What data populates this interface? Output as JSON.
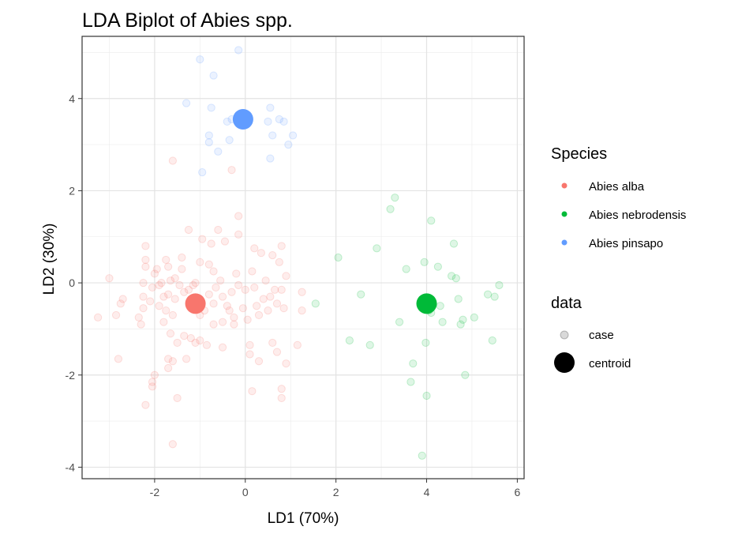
{
  "chart_data": {
    "type": "scatter",
    "title": "LDA Biplot of Abies spp.",
    "xlabel": "LD1 (70%)",
    "ylabel": "LD2 (30%)",
    "xlim": [
      -3.6,
      6.15
    ],
    "ylim": [
      -4.25,
      5.35
    ],
    "xticks": [
      -2,
      0,
      2,
      4,
      6
    ],
    "yticks": [
      -4,
      -2,
      0,
      2,
      4
    ],
    "grid": true,
    "legend_position": "right",
    "legends": [
      {
        "title": "Species",
        "entries": [
          {
            "label": "Abies alba",
            "color": "#F8766D"
          },
          {
            "label": "Abies nebrodensis",
            "color": "#00BA38"
          },
          {
            "label": "Abies pinsapo",
            "color": "#619CFF"
          }
        ]
      },
      {
        "title": "data",
        "entries": [
          {
            "label": "case"
          },
          {
            "label": "centroid"
          }
        ]
      }
    ],
    "series": [
      {
        "name": "Abies alba",
        "color": "#F8766D",
        "cases": [
          [
            -3.25,
            -0.75
          ],
          [
            -3.0,
            0.1
          ],
          [
            -2.85,
            -0.7
          ],
          [
            -2.8,
            -1.65
          ],
          [
            -2.75,
            -0.45
          ],
          [
            -2.7,
            -0.35
          ],
          [
            -2.35,
            -0.75
          ],
          [
            -2.3,
            -0.9
          ],
          [
            -2.25,
            -0.55
          ],
          [
            -2.25,
            -0.3
          ],
          [
            -2.25,
            0.0
          ],
          [
            -2.2,
            0.35
          ],
          [
            -2.2,
            0.5
          ],
          [
            -2.2,
            0.8
          ],
          [
            -2.2,
            -2.65
          ],
          [
            -2.1,
            -0.4
          ],
          [
            -2.05,
            -0.1
          ],
          [
            -2.0,
            0.2
          ],
          [
            -2.05,
            -2.15
          ],
          [
            -2.0,
            -2.0
          ],
          [
            -2.05,
            -2.25
          ],
          [
            -1.95,
            0.3
          ],
          [
            -1.9,
            -0.5
          ],
          [
            -1.9,
            -0.05
          ],
          [
            -1.85,
            0.0
          ],
          [
            -1.8,
            -0.3
          ],
          [
            -1.8,
            -0.85
          ],
          [
            -1.75,
            0.5
          ],
          [
            -1.75,
            -0.6
          ],
          [
            -1.7,
            0.35
          ],
          [
            -1.7,
            -0.25
          ],
          [
            -1.7,
            -1.65
          ],
          [
            -1.7,
            -1.85
          ],
          [
            -1.65,
            -1.1
          ],
          [
            -1.65,
            0.05
          ],
          [
            -1.6,
            -0.7
          ],
          [
            -1.6,
            2.65
          ],
          [
            -1.6,
            -1.7
          ],
          [
            -1.6,
            -3.5
          ],
          [
            -1.55,
            0.1
          ],
          [
            -1.55,
            -0.35
          ],
          [
            -1.5,
            -1.3
          ],
          [
            -1.5,
            -2.5
          ],
          [
            -1.45,
            -0.05
          ],
          [
            -1.4,
            0.3
          ],
          [
            -1.4,
            0.55
          ],
          [
            -1.35,
            -0.2
          ],
          [
            -1.35,
            -1.15
          ],
          [
            -1.3,
            -1.65
          ],
          [
            -1.25,
            -0.15
          ],
          [
            -1.25,
            1.15
          ],
          [
            -1.2,
            -1.2
          ],
          [
            -1.15,
            -0.05
          ],
          [
            -1.1,
            0.0
          ],
          [
            -1.1,
            -1.3
          ],
          [
            -1.0,
            -0.7
          ],
          [
            -1.0,
            0.45
          ],
          [
            -1.0,
            -1.25
          ],
          [
            -0.95,
            0.95
          ],
          [
            -0.9,
            -0.6
          ],
          [
            -0.85,
            -1.35
          ],
          [
            -0.8,
            -0.25
          ],
          [
            -0.8,
            0.4
          ],
          [
            -0.75,
            0.85
          ],
          [
            -0.7,
            0.25
          ],
          [
            -0.7,
            -0.45
          ],
          [
            -0.7,
            -0.9
          ],
          [
            -0.65,
            -0.1
          ],
          [
            -0.6,
            1.15
          ],
          [
            -0.55,
            0.05
          ],
          [
            -0.5,
            -0.3
          ],
          [
            -0.5,
            -0.85
          ],
          [
            -0.45,
            0.9
          ],
          [
            -0.4,
            -0.5
          ],
          [
            -0.35,
            -0.6
          ],
          [
            -0.3,
            -0.2
          ],
          [
            -0.3,
            2.45
          ],
          [
            -0.25,
            -0.9
          ],
          [
            -0.25,
            -0.75
          ],
          [
            -0.2,
            0.2
          ],
          [
            -0.15,
            1.05
          ],
          [
            -0.15,
            1.45
          ],
          [
            -0.15,
            -0.05
          ],
          [
            -0.05,
            -0.55
          ],
          [
            0.0,
            -0.15
          ],
          [
            0.05,
            -0.8
          ],
          [
            0.1,
            -1.35
          ],
          [
            0.1,
            -1.55
          ],
          [
            0.15,
            0.25
          ],
          [
            0.2,
            -0.1
          ],
          [
            0.2,
            0.75
          ],
          [
            0.25,
            -0.5
          ],
          [
            0.3,
            -0.7
          ],
          [
            0.35,
            0.65
          ],
          [
            0.4,
            -0.35
          ],
          [
            0.45,
            0.05
          ],
          [
            0.5,
            -0.6
          ],
          [
            0.55,
            -0.3
          ],
          [
            0.6,
            0.6
          ],
          [
            0.65,
            -0.15
          ],
          [
            0.7,
            -0.45
          ],
          [
            0.75,
            0.45
          ],
          [
            0.8,
            0.8
          ],
          [
            0.8,
            -0.15
          ],
          [
            0.85,
            -0.55
          ],
          [
            0.9,
            0.15
          ],
          [
            0.6,
            -1.3
          ],
          [
            0.7,
            -1.5
          ],
          [
            0.9,
            -1.75
          ],
          [
            0.15,
            -2.35
          ],
          [
            0.8,
            -2.3
          ],
          [
            0.8,
            -2.5
          ],
          [
            1.25,
            -0.2
          ],
          [
            1.25,
            -0.6
          ],
          [
            0.3,
            -1.7
          ],
          [
            1.15,
            -1.35
          ],
          [
            -0.5,
            -1.4
          ]
        ],
        "centroid": [
          -1.1,
          -0.45
        ]
      },
      {
        "name": "Abies nebrodensis",
        "color": "#00BA38",
        "cases": [
          [
            1.55,
            -0.45
          ],
          [
            2.05,
            0.55
          ],
          [
            2.3,
            -1.25
          ],
          [
            2.55,
            -0.25
          ],
          [
            2.75,
            -1.35
          ],
          [
            2.9,
            0.75
          ],
          [
            3.2,
            1.6
          ],
          [
            3.3,
            1.85
          ],
          [
            3.4,
            -0.85
          ],
          [
            3.55,
            0.3
          ],
          [
            3.65,
            -2.15
          ],
          [
            3.7,
            -1.75
          ],
          [
            3.9,
            -3.75
          ],
          [
            3.95,
            0.45
          ],
          [
            3.98,
            -1.3
          ],
          [
            4.0,
            -2.45
          ],
          [
            4.05,
            -0.6
          ],
          [
            4.1,
            1.35
          ],
          [
            4.1,
            -0.65
          ],
          [
            4.25,
            0.35
          ],
          [
            4.3,
            -0.5
          ],
          [
            4.35,
            -0.85
          ],
          [
            4.55,
            0.15
          ],
          [
            4.6,
            0.85
          ],
          [
            4.65,
            0.1
          ],
          [
            4.7,
            -0.35
          ],
          [
            4.75,
            -0.9
          ],
          [
            4.8,
            -0.8
          ],
          [
            4.85,
            -2.0
          ],
          [
            5.05,
            -0.75
          ],
          [
            5.35,
            -0.25
          ],
          [
            5.45,
            -1.25
          ],
          [
            5.5,
            -0.3
          ],
          [
            5.6,
            -0.05
          ]
        ],
        "centroid": [
          4.0,
          -0.45
        ]
      },
      {
        "name": "Abies pinsapo",
        "color": "#619CFF",
        "cases": [
          [
            -1.3,
            3.9
          ],
          [
            -1.0,
            4.85
          ],
          [
            -0.95,
            2.4
          ],
          [
            -0.8,
            3.2
          ],
          [
            -0.8,
            3.05
          ],
          [
            -0.75,
            3.8
          ],
          [
            -0.7,
            4.5
          ],
          [
            -0.6,
            2.85
          ],
          [
            -0.4,
            3.5
          ],
          [
            -0.35,
            3.1
          ],
          [
            -0.3,
            3.55
          ],
          [
            -0.15,
            5.05
          ],
          [
            0.05,
            3.6
          ],
          [
            0.5,
            3.5
          ],
          [
            0.55,
            3.8
          ],
          [
            0.55,
            2.7
          ],
          [
            0.6,
            3.2
          ],
          [
            0.75,
            3.55
          ],
          [
            0.85,
            3.5
          ],
          [
            0.95,
            3.0
          ],
          [
            1.05,
            3.2
          ]
        ],
        "centroid": [
          -0.05,
          3.55
        ]
      }
    ]
  }
}
